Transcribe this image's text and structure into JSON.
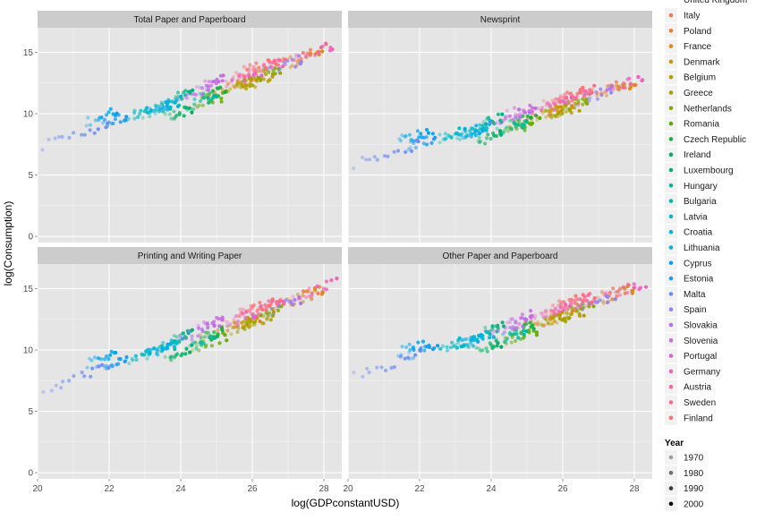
{
  "chart_data": {
    "type": "scatter",
    "xlabel": "log(GDPconstantUSD)",
    "ylabel": "log(Consumption)",
    "xlim": [
      20,
      28.5
    ],
    "ylim": [
      -0.5,
      17
    ],
    "x_ticks": [
      "20",
      "22",
      "24",
      "26",
      "28"
    ],
    "y_ticks": [
      "0",
      "5",
      "10",
      "15"
    ],
    "grid": true,
    "legend_position": "right",
    "panels": [
      {
        "title": "Total Paper and Paperboard",
        "curve": "total"
      },
      {
        "title": "Newsprint",
        "curve": "news"
      },
      {
        "title": "Printing and Writing Paper",
        "curve": "print"
      },
      {
        "title": "Other Paper and Paperboard",
        "curve": "other"
      }
    ],
    "legend_country_partial": "United Kingdom",
    "series": [
      {
        "name": "Italy",
        "color": "#F0784E",
        "x_range": [
          26.6,
          28.0
        ],
        "offset": 0.3
      },
      {
        "name": "Poland",
        "color": "#E97F2C",
        "x_range": [
          24.6,
          26.2
        ],
        "offset": -0.2
      },
      {
        "name": "France",
        "color": "#DE8A1A",
        "x_range": [
          27.0,
          28.0
        ],
        "offset": 0.1
      },
      {
        "name": "Denmark",
        "color": "#C69700",
        "x_range": [
          25.5,
          26.0
        ],
        "offset": -0.3
      },
      {
        "name": "Belgium",
        "color": "#B39C00",
        "x_range": [
          25.8,
          26.6
        ],
        "offset": -0.5
      },
      {
        "name": "Greece",
        "color": "#A0A400",
        "x_range": [
          25.3,
          26.2
        ],
        "offset": -0.4
      },
      {
        "name": "Netherlands",
        "color": "#87A900",
        "x_range": [
          26.0,
          26.8
        ],
        "offset": -0.1
      },
      {
        "name": "Romania",
        "color": "#64AB07",
        "x_range": [
          24.3,
          25.3
        ],
        "offset": -0.8
      },
      {
        "name": "Czech Republic",
        "color": "#18AF3D",
        "x_range": [
          24.5,
          25.2
        ],
        "offset": -0.3
      },
      {
        "name": "Ireland",
        "color": "#00AF5E",
        "x_range": [
          23.6,
          24.3
        ],
        "offset": -0.9
      },
      {
        "name": "Luxembourg",
        "color": "#00B17E",
        "x_range": [
          23.8,
          24.3
        ],
        "offset": 0.4
      },
      {
        "name": "Hungary",
        "color": "#00B896",
        "x_range": [
          24.2,
          25.0
        ],
        "offset": -0.6
      },
      {
        "name": "Bulgaria",
        "color": "#00BCAD",
        "x_range": [
          23.0,
          23.9
        ],
        "offset": 0.0
      },
      {
        "name": "Latvia",
        "color": "#00BAC6",
        "x_range": [
          22.5,
          23.2
        ],
        "offset": 0.2
      },
      {
        "name": "Croatia",
        "color": "#00B5DA",
        "x_range": [
          23.3,
          24.0
        ],
        "offset": 0.1
      },
      {
        "name": "Lithuania",
        "color": "#00AEE8",
        "x_range": [
          23.1,
          23.7
        ],
        "offset": 0.0
      },
      {
        "name": "Cyprus",
        "color": "#00A7F0",
        "x_range": [
          21.4,
          22.2
        ],
        "offset": 1.0
      },
      {
        "name": "Estonia",
        "color": "#1B9AF6",
        "x_range": [
          21.7,
          22.5
        ],
        "offset": 0.4
      },
      {
        "name": "Malta",
        "color": "#6B8CF7",
        "x_range": [
          20.2,
          22.0
        ],
        "offset": 0.2
      },
      {
        "name": "Spain",
        "color": "#967FF5",
        "x_range": [
          26.4,
          27.4
        ],
        "offset": 0.0
      },
      {
        "name": "Slovakia",
        "color": "#B572EC",
        "x_range": [
          24.0,
          25.0
        ],
        "offset": 0.3
      },
      {
        "name": "Slovenia",
        "color": "#CB69DF",
        "x_range": [
          24.5,
          25.2
        ],
        "offset": 0.6
      },
      {
        "name": "Portugal",
        "color": "#DF64CF",
        "x_range": [
          25.2,
          26.2
        ],
        "offset": 0.2
      },
      {
        "name": "Germany",
        "color": "#F063BB",
        "x_range": [
          27.2,
          28.3
        ],
        "offset": 0.3
      },
      {
        "name": "Austria",
        "color": "#F866A3",
        "x_range": [
          25.6,
          26.8
        ],
        "offset": 0.4
      },
      {
        "name": "Sweden",
        "color": "#FB6C8B",
        "x_range": [
          25.7,
          26.9
        ],
        "offset": 0.5
      },
      {
        "name": "Finland",
        "color": "#FC7172",
        "x_range": [
          25.5,
          26.6
        ],
        "offset": 0.7
      }
    ],
    "year_legend": {
      "title": "Year",
      "items": [
        {
          "label": "1970",
          "color": "#9E9E9E"
        },
        {
          "label": "1980",
          "color": "#6E6E6E"
        },
        {
          "label": "1990",
          "color": "#3C3C3C"
        },
        {
          "label": "2000",
          "color": "#000000"
        }
      ]
    }
  }
}
